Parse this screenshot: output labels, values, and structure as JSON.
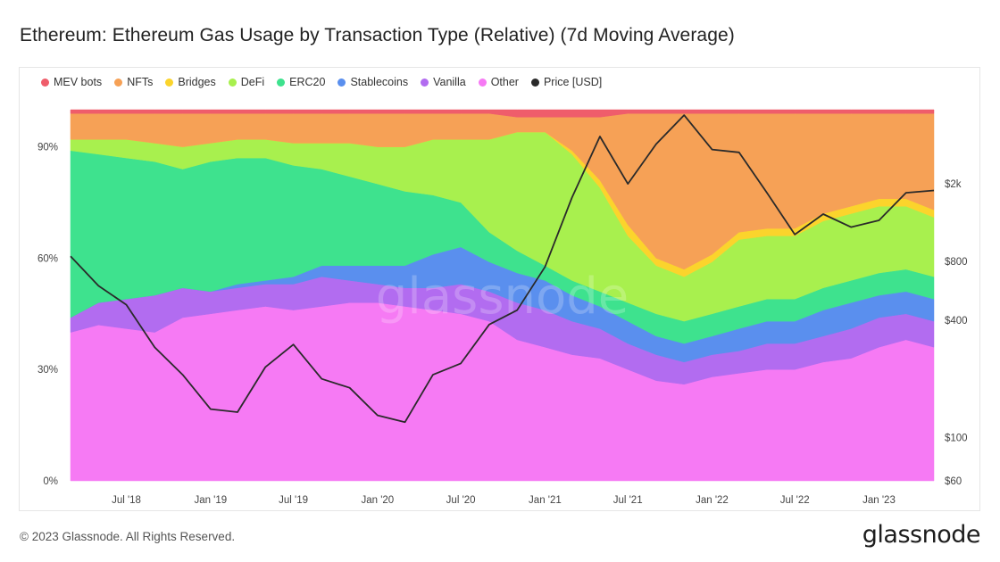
{
  "title": "Ethereum: Ethereum Gas Usage by Transaction Type (Relative) (7d Moving Average)",
  "footer": {
    "copyright": "© 2023 Glassnode. All Rights Reserved.",
    "logo": "glassnode"
  },
  "watermark": "glassnode",
  "chart_data": {
    "type": "area",
    "stacked": true,
    "normalized": true,
    "title": "Ethereum: Ethereum Gas Usage by Transaction Type (Relative) (7d Moving Average)",
    "x_tick_labels": [
      "Jul '18",
      "Jan '19",
      "Jul '19",
      "Jan '20",
      "Jul '20",
      "Jan '21",
      "Jul '21",
      "Jan '22",
      "Jul '22",
      "Jan '23"
    ],
    "x": [
      "2018-03-01",
      "2018-05-01",
      "2018-07-01",
      "2018-09-01",
      "2018-11-01",
      "2019-01-01",
      "2019-03-01",
      "2019-05-01",
      "2019-07-01",
      "2019-09-01",
      "2019-11-01",
      "2020-01-01",
      "2020-03-01",
      "2020-05-01",
      "2020-07-01",
      "2020-09-01",
      "2020-11-01",
      "2021-01-01",
      "2021-03-01",
      "2021-05-01",
      "2021-07-01",
      "2021-09-01",
      "2021-11-01",
      "2022-01-01",
      "2022-03-01",
      "2022-05-01",
      "2022-07-01",
      "2022-09-01",
      "2022-11-01",
      "2023-01-01",
      "2023-03-01",
      "2023-05-01"
    ],
    "y_left": {
      "label": "",
      "ticks": [
        "0%",
        "30%",
        "60%",
        "90%"
      ],
      "ylim": [
        0,
        100
      ]
    },
    "y_right": {
      "label": "",
      "scale": "log",
      "ticks": [
        "$60",
        "$100",
        "$400",
        "$800",
        "$2k"
      ]
    },
    "legend_position": "top-left",
    "grid": false,
    "series": [
      {
        "name": "Other",
        "color": "#f67af4",
        "values": [
          40,
          42,
          41,
          40,
          44,
          45,
          46,
          47,
          46,
          47,
          48,
          48,
          47,
          46,
          45,
          43,
          38,
          36,
          34,
          33,
          30,
          27,
          26,
          28,
          29,
          30,
          30,
          32,
          33,
          36,
          38,
          36
        ]
      },
      {
        "name": "Vanilla",
        "color": "#b26cf0",
        "values": [
          4,
          6,
          8,
          10,
          8,
          6,
          6,
          6,
          7,
          8,
          6,
          5,
          5,
          6,
          8,
          8,
          10,
          10,
          9,
          8,
          7,
          7,
          6,
          6,
          6,
          7,
          7,
          7,
          8,
          8,
          7,
          7
        ]
      },
      {
        "name": "Stablecoins",
        "color": "#5a8fee",
        "values": [
          0,
          0,
          0,
          0,
          0,
          0,
          1,
          1,
          2,
          3,
          4,
          5,
          6,
          9,
          10,
          8,
          8,
          8,
          7,
          6,
          6,
          5,
          5,
          5,
          6,
          6,
          6,
          7,
          7,
          6,
          6,
          6
        ]
      },
      {
        "name": "ERC20",
        "color": "#3ee28e",
        "values": [
          45,
          40,
          38,
          36,
          32,
          35,
          34,
          33,
          30,
          26,
          24,
          22,
          20,
          16,
          12,
          8,
          6,
          4,
          4,
          4,
          5,
          6,
          6,
          6,
          6,
          6,
          6,
          6,
          6,
          6,
          6,
          6
        ]
      },
      {
        "name": "DeFi",
        "color": "#a8f04e",
        "values": [
          3,
          4,
          5,
          5,
          6,
          5,
          5,
          5,
          6,
          7,
          9,
          10,
          12,
          15,
          17,
          25,
          32,
          36,
          34,
          28,
          18,
          13,
          12,
          14,
          18,
          17,
          17,
          18,
          18,
          18,
          17,
          16
        ]
      },
      {
        "name": "Bridges",
        "color": "#fbd42c",
        "values": [
          0,
          0,
          0,
          0,
          0,
          0,
          0,
          0,
          0,
          0,
          0,
          0,
          0,
          0,
          0,
          0,
          0,
          0,
          1,
          2,
          3,
          2,
          2,
          2,
          2,
          2,
          2,
          2,
          2,
          2,
          2,
          2
        ]
      },
      {
        "name": "NFTs",
        "color": "#f6a156",
        "values": [
          7,
          7,
          7,
          8,
          9,
          8,
          7,
          7,
          8,
          8,
          8,
          9,
          9,
          7,
          7,
          7,
          4,
          4,
          9,
          17,
          30,
          39,
          42,
          38,
          32,
          31,
          31,
          27,
          25,
          23,
          23,
          26
        ]
      },
      {
        "name": "MEV bots",
        "color": "#ef5d6b",
        "values": [
          1,
          1,
          1,
          1,
          1,
          1,
          1,
          1,
          1,
          1,
          1,
          1,
          1,
          1,
          1,
          1,
          2,
          2,
          2,
          2,
          1,
          1,
          1,
          1,
          1,
          1,
          1,
          1,
          1,
          1,
          1,
          1
        ]
      }
    ],
    "price_series": {
      "name": "Price [USD]",
      "color": "#2a2a2a",
      "values": [
        850,
        600,
        480,
        290,
        210,
        140,
        135,
        230,
        300,
        200,
        180,
        130,
        120,
        210,
        240,
        380,
        450,
        750,
        1700,
        3500,
        2000,
        3200,
        4500,
        3000,
        2900,
        1800,
        1100,
        1400,
        1200,
        1300,
        1800,
        1850
      ]
    },
    "legend": [
      "MEV bots",
      "NFTs",
      "Bridges",
      "DeFi",
      "ERC20",
      "Stablecoins",
      "Vanilla",
      "Other",
      "Price [USD]"
    ]
  }
}
